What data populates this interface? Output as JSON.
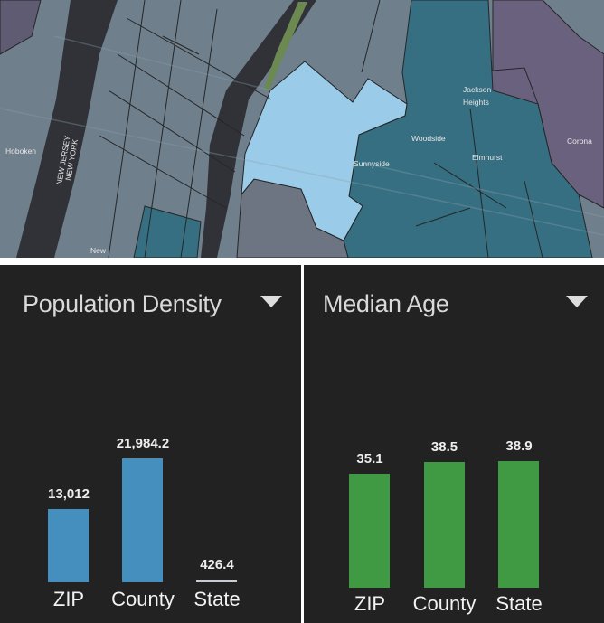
{
  "map": {
    "labels": {
      "hoboken": "Hoboken",
      "new_jersey": "NEW JERSEY",
      "new_york_state": "NEW YORK",
      "sunnyside": "Sunnyside",
      "woodside": "Woodside",
      "jackson": "Jackson",
      "heights": "Heights",
      "elmhurst": "Elmhurst",
      "corona": "Corona",
      "new_york_city": "New"
    },
    "colors": {
      "base": "#6f7f8c",
      "selected": "#9fd4f2",
      "teal": "#2f6e80",
      "purple": "#6a5e7e",
      "water": "#2a2a2e",
      "park": "#6b8b4a"
    }
  },
  "chart_data": [
    {
      "type": "bar",
      "title": "Population Density",
      "categories": [
        "ZIP",
        "County",
        "State"
      ],
      "values": [
        13012,
        21984.2,
        426.4
      ],
      "value_labels": [
        "13,012",
        "21,984.2",
        "426.4"
      ],
      "colors": [
        "#458fbf",
        "#458fbf",
        "#c8ccd0"
      ],
      "ylim": [
        0,
        21984.2
      ]
    },
    {
      "type": "bar",
      "title": "Median Age",
      "categories": [
        "ZIP",
        "County",
        "State"
      ],
      "values": [
        35.1,
        38.5,
        38.9
      ],
      "value_labels": [
        "35.1",
        "38.5",
        "38.9"
      ],
      "colors": [
        "#409a44",
        "#409a44",
        "#409a44"
      ],
      "ylim": [
        0,
        38.9
      ]
    }
  ]
}
